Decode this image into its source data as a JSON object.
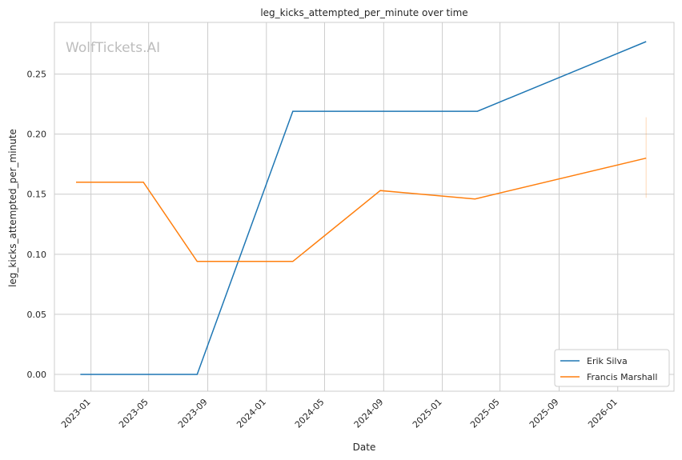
{
  "watermark": "WolfTickets.AI",
  "chart_data": {
    "type": "line",
    "title": "leg_kicks_attempted_per_minute over time",
    "xlabel": "Date",
    "ylabel": "leg_kicks_attempted_per_minute",
    "xlim": [
      "2022-10-17",
      "2026-04-28"
    ],
    "ylim": [
      -0.014,
      0.293
    ],
    "xticks": [
      "2023-01",
      "2023-05",
      "2023-09",
      "2024-01",
      "2024-05",
      "2024-09",
      "2025-01",
      "2025-05",
      "2025-09",
      "2026-01"
    ],
    "yticks": [
      0.0,
      0.05,
      0.1,
      0.15,
      0.2,
      0.25
    ],
    "grid": true,
    "legend_position": "lower-right",
    "series": [
      {
        "name": "Erik Silva",
        "color": "#1f77b4",
        "x": [
          "2022-12-10",
          "2023-08-10",
          "2024-02-25",
          "2025-03-15",
          "2026-03-01"
        ],
        "y": [
          0.0,
          0.0,
          0.219,
          0.219,
          0.277
        ]
      },
      {
        "name": "Francis Marshall",
        "color": "#ff7f0e",
        "x": [
          "2022-12-01",
          "2023-04-20",
          "2023-08-10",
          "2024-02-25",
          "2024-08-25",
          "2025-03-10",
          "2026-03-01"
        ],
        "y": [
          0.16,
          0.16,
          0.094,
          0.094,
          0.153,
          0.146,
          0.18
        ]
      }
    ],
    "error_bar": {
      "series": "Francis Marshall",
      "x": "2026-03-01",
      "low": 0.147,
      "high": 0.214
    }
  }
}
